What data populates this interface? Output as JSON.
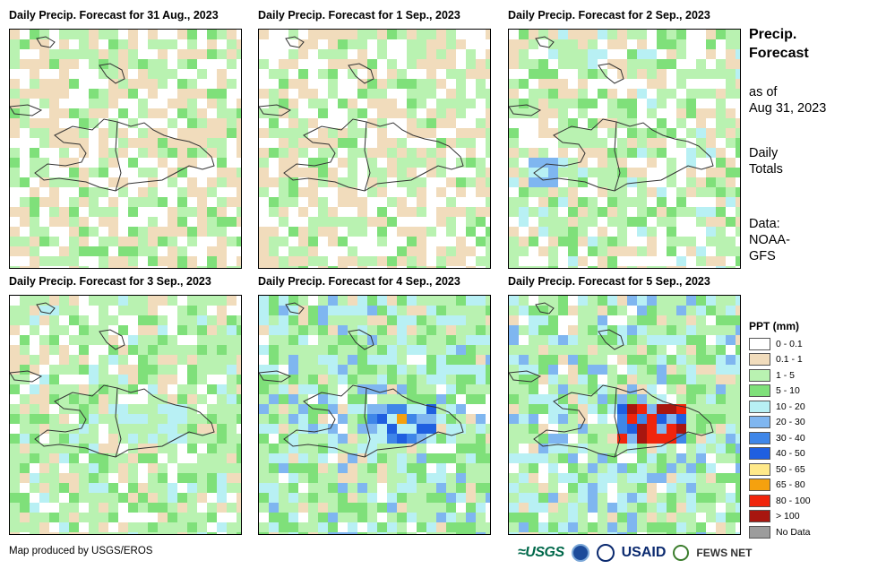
{
  "panels": [
    {
      "title": "Daily Precip. Forecast for 31 Aug., 2023",
      "seed": 1,
      "base": "mixed-dry",
      "hotspots": []
    },
    {
      "title": "Daily Precip. Forecast for 1 Sep., 2023",
      "seed": 2,
      "base": "mixed-dry",
      "hotspots": []
    },
    {
      "title": "Daily Precip. Forecast for 2 Sep., 2023",
      "seed": 3,
      "base": "mixed-light",
      "hotspots": [
        "west-light"
      ]
    },
    {
      "title": "Daily Precip. Forecast for 3 Sep., 2023",
      "seed": 4,
      "base": "green",
      "hotspots": [
        "center-light"
      ]
    },
    {
      "title": "Daily Precip. Forecast for 4 Sep., 2023",
      "seed": 5,
      "base": "green-wet",
      "hotspots": [
        "center-moderate"
      ]
    },
    {
      "title": "Daily Precip. Forecast for 5 Sep., 2023",
      "seed": 6,
      "base": "green-wet",
      "hotspots": [
        "center-heavy"
      ]
    }
  ],
  "side": {
    "title_line1": "Precip.",
    "title_line2": "Forecast",
    "asof_line1": "as of",
    "asof_line2": "Aug 31, 2023",
    "totals_line1": "Daily",
    "totals_line2": "Totals",
    "data_line1": "Data:",
    "data_line2": "NOAA-",
    "data_line3": "GFS"
  },
  "legend": {
    "title": "PPT (mm)",
    "items": [
      {
        "label": "0 - 0.1",
        "color": "#ffffff"
      },
      {
        "label": "0.1 - 1",
        "color": "#f1dcbc"
      },
      {
        "label": "1 - 5",
        "color": "#b9f2b1"
      },
      {
        "label": "5 - 10",
        "color": "#7fe07a"
      },
      {
        "label": "10 - 20",
        "color": "#b8f0f4"
      },
      {
        "label": "20 - 30",
        "color": "#7fb6f0"
      },
      {
        "label": "30 - 40",
        "color": "#3f86e8"
      },
      {
        "label": "40 - 50",
        "color": "#1f5fe0"
      },
      {
        "label": "50 - 65",
        "color": "#ffe98a"
      },
      {
        "label": "65 - 80",
        "color": "#f5a10e"
      },
      {
        "label": "80 - 100",
        "color": "#f0250c"
      },
      {
        "label": "> 100",
        "color": "#a8160f"
      },
      {
        "label": "No Data",
        "color": "#9c9c9c"
      }
    ]
  },
  "footer": {
    "credit": "Map produced by USGS/EROS",
    "logo_usgs": "≈USGS",
    "logo_usaid": "USAID",
    "logo_fews": "FEWS NET"
  }
}
